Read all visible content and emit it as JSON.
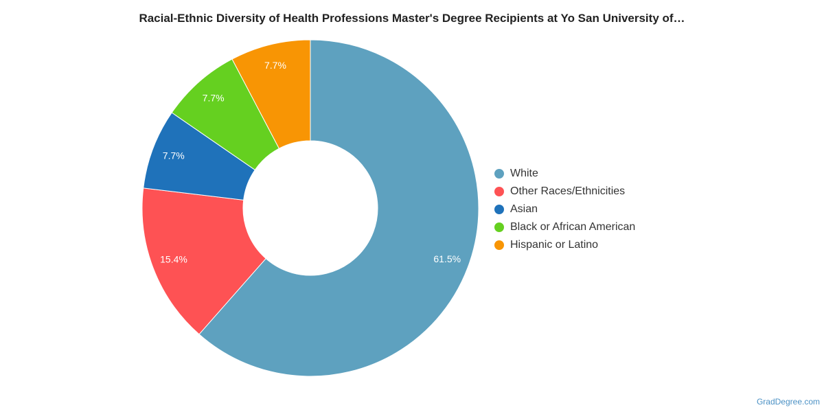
{
  "chart_data": {
    "type": "pie",
    "title": "Racial-Ethnic Diversity of Health Professions Master's Degree Recipients at Yo San University of…",
    "donut": true,
    "legend_position": "right",
    "slices": [
      {
        "label": "White",
        "value": 61.5,
        "display": "61.5%",
        "color": "#5ea1bf"
      },
      {
        "label": "Other Races/Ethnicities",
        "value": 15.4,
        "display": "15.4%",
        "color": "#fe5254"
      },
      {
        "label": "Asian",
        "value": 7.7,
        "display": "7.7%",
        "color": "#1f72ba"
      },
      {
        "label": "Black or African American",
        "value": 7.7,
        "display": "7.7%",
        "color": "#65d020"
      },
      {
        "label": "Hispanic or Latino",
        "value": 7.7,
        "display": "7.7%",
        "color": "#f89504"
      }
    ]
  },
  "credit": "GradDegree.com"
}
